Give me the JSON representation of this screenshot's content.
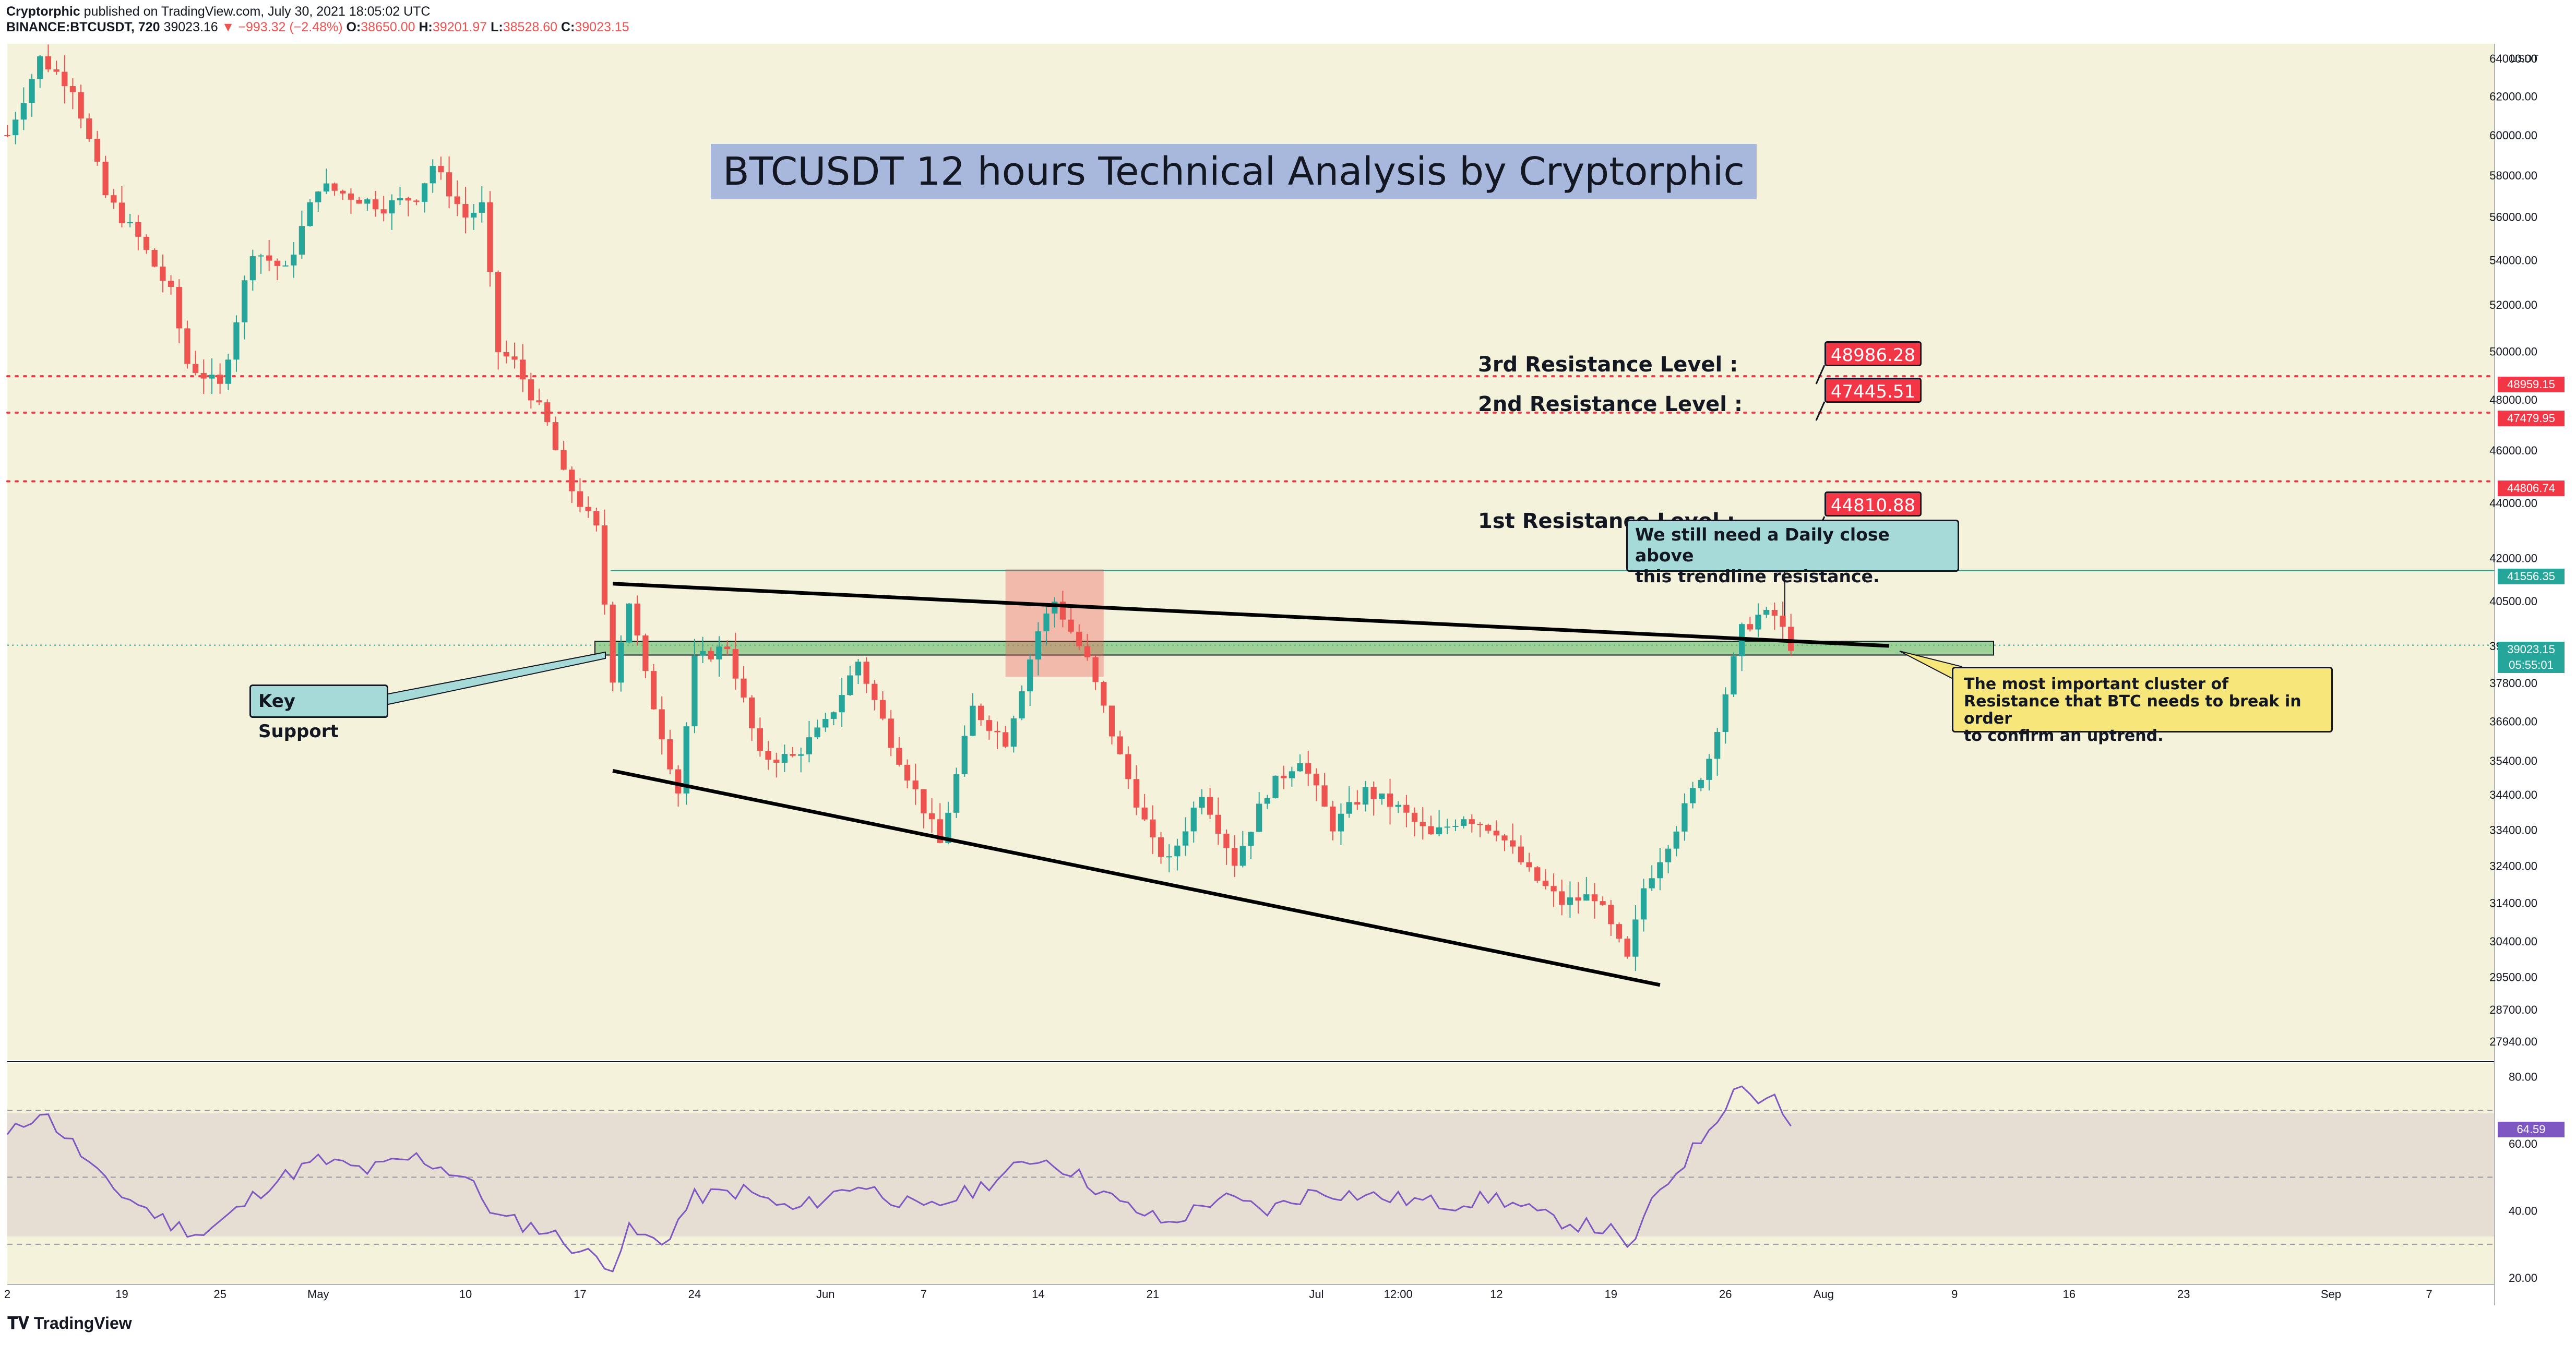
{
  "header": {
    "author": "Cryptorphic",
    "published": "published on TradingView.com, July 30, 2021 18:05:02 UTC",
    "symbol": "BINANCE:BTCUSDT, 720",
    "last": "39023.16",
    "change": "−993.32 (−2.48%)",
    "o_label": "O:",
    "o_value": "38650.00",
    "h_label": "H:",
    "h_value": "39201.97",
    "l_label": "L:",
    "l_value": "38528.60",
    "c_label": "C:",
    "c_value": "39023.15"
  },
  "footer": {
    "brand": "TradingView"
  },
  "colors": {
    "background": "#f5f2dc",
    "up": "#26a69a",
    "down": "#ef5350",
    "resistance": "#f23645",
    "support_zone": "#6fbf73",
    "rsi": "#7e57c2",
    "current_price": "#26a69a"
  },
  "title": "BTCUSDT 12 hours Technical Analysis by Cryptorphic",
  "annotations": {
    "r3_label": "3rd Resistance Level :",
    "r3_value": "48986.28",
    "r2_label": "2nd Resistance Level :",
    "r2_value": "47445.51",
    "r1_label": "1st Resistance Level :",
    "r1_value": "44810.88",
    "key_support": "Key Support",
    "daily_close_line1": "We still need a  Daily close above",
    "daily_close_line2": "this trendline resistance.",
    "cluster_line1": "The most important cluster of",
    "cluster_line2": "Resistance that BTC needs to break in order",
    "cluster_line3": "to confirm an uptrend."
  },
  "price_tags": {
    "currency": "USDT",
    "r3": "48959.15",
    "r2": "47479.95",
    "r1": "44806.74",
    "trend": "41556.35",
    "current": "39023.15",
    "countdown": "05:55:01",
    "rsi_current": "64.59"
  },
  "chart_data": [
    {
      "type": "candlestick",
      "title": "BINANCE:BTCUSDT, 720",
      "y_scale": "log",
      "ylim": [
        27500,
        64800
      ],
      "y_ticks": [
        27940,
        28700,
        29500,
        30400,
        31400,
        32400,
        33400,
        34400,
        35400,
        36600,
        37800,
        39000,
        40500,
        42000,
        44000,
        46000,
        48000,
        50000,
        52000,
        54000,
        56000,
        58000,
        60000,
        62000,
        64000
      ],
      "x_ticks": [
        "2",
        "19",
        "25",
        "May",
        "10",
        "17",
        "24",
        "Jun",
        "7",
        "14",
        "21",
        "Jul",
        "12:00",
        "12",
        "19",
        "26",
        "Aug",
        "9",
        "16",
        "23",
        "Sep",
        "7"
      ],
      "x_range": [
        "2021-04-12",
        "2021-09-11"
      ],
      "x_tick_dates": [
        "2021-04-12",
        "2021-04-19",
        "2021-04-25",
        "2021-05-01",
        "2021-05-10",
        "2021-05-17",
        "2021-05-24",
        "2021-06-01",
        "2021-06-07",
        "2021-06-14",
        "2021-06-21",
        "2021-07-01",
        "2021-07-06",
        "2021-07-12",
        "2021-07-19",
        "2021-07-26",
        "2021-08-01",
        "2021-08-09",
        "2021-08-16",
        "2021-08-23",
        "2021-09-01",
        "2021-09-07"
      ],
      "path": [
        [
          "2021-04-12",
          60000
        ],
        [
          "2021-04-14",
          64000
        ],
        [
          "2021-04-16",
          62500
        ],
        [
          "2021-04-18",
          57000
        ],
        [
          "2021-04-20",
          55000
        ],
        [
          "2021-04-22",
          52500
        ],
        [
          "2021-04-23",
          49500
        ],
        [
          "2021-04-25",
          48500
        ],
        [
          "2021-04-27",
          54500
        ],
        [
          "2021-04-29",
          53500
        ],
        [
          "2021-05-01",
          57500
        ],
        [
          "2021-05-03",
          57000
        ],
        [
          "2021-05-05",
          56500
        ],
        [
          "2021-05-07",
          57000
        ],
        [
          "2021-05-08",
          58500
        ],
        [
          "2021-05-10",
          56000
        ],
        [
          "2021-05-11",
          56500
        ],
        [
          "2021-05-12",
          50000
        ],
        [
          "2021-05-13",
          49500
        ],
        [
          "2021-05-15",
          47000
        ],
        [
          "2021-05-16",
          45000
        ],
        [
          "2021-05-18",
          43000
        ],
        [
          "2021-05-19",
          38000
        ],
        [
          "2021-05-20",
          40500
        ],
        [
          "2021-05-21",
          38000
        ],
        [
          "2021-05-23",
          34500
        ],
        [
          "2021-05-24",
          38500
        ],
        [
          "2021-05-26",
          39000
        ],
        [
          "2021-05-28",
          35500
        ],
        [
          "2021-05-30",
          35500
        ],
        [
          "2021-06-01",
          36500
        ],
        [
          "2021-06-03",
          38500
        ],
        [
          "2021-06-05",
          36000
        ],
        [
          "2021-06-07",
          34000
        ],
        [
          "2021-06-08",
          33000
        ],
        [
          "2021-06-10",
          37000
        ],
        [
          "2021-06-12",
          36000
        ],
        [
          "2021-06-14",
          39500
        ],
        [
          "2021-06-15",
          40500
        ],
        [
          "2021-06-17",
          38500
        ],
        [
          "2021-06-19",
          35500
        ],
        [
          "2021-06-21",
          33000
        ],
        [
          "2021-06-22",
          32500
        ],
        [
          "2021-06-24",
          34500
        ],
        [
          "2021-06-26",
          32500
        ],
        [
          "2021-06-28",
          34500
        ],
        [
          "2021-06-30",
          35500
        ],
        [
          "2021-07-02",
          33500
        ],
        [
          "2021-07-04",
          34500
        ],
        [
          "2021-07-06",
          34000
        ],
        [
          "2021-07-08",
          33200
        ],
        [
          "2021-07-10",
          33800
        ],
        [
          "2021-07-12",
          33400
        ],
        [
          "2021-07-14",
          32200
        ],
        [
          "2021-07-16",
          31400
        ],
        [
          "2021-07-18",
          31600
        ],
        [
          "2021-07-20",
          29900
        ],
        [
          "2021-07-21",
          31800
        ],
        [
          "2021-07-23",
          33500
        ],
        [
          "2021-07-25",
          35500
        ],
        [
          "2021-07-26",
          37500
        ],
        [
          "2021-07-27",
          39500
        ],
        [
          "2021-07-28",
          40000
        ],
        [
          "2021-07-29",
          40000
        ],
        [
          "2021-07-30",
          39023
        ]
      ],
      "current_price": 39023.15,
      "horizontal_levels": [
        48959.15,
        47479.95,
        44806.74,
        41556.35
      ],
      "support_zone": [
        38700,
        39150
      ]
    },
    {
      "type": "line",
      "title": "RSI",
      "ylim": [
        18,
        84
      ],
      "y_ticks": [
        20,
        40,
        60,
        80
      ],
      "band": [
        30,
        70
      ],
      "midline": 50,
      "path": [
        [
          "2021-04-12",
          62
        ],
        [
          "2021-04-14",
          70
        ],
        [
          "2021-04-16",
          60
        ],
        [
          "2021-04-18",
          48
        ],
        [
          "2021-04-20",
          42
        ],
        [
          "2021-04-22",
          36
        ],
        [
          "2021-04-24",
          33
        ],
        [
          "2021-04-26",
          40
        ],
        [
          "2021-04-28",
          48
        ],
        [
          "2021-05-01",
          55
        ],
        [
          "2021-05-04",
          52
        ],
        [
          "2021-05-07",
          56
        ],
        [
          "2021-05-10",
          50
        ],
        [
          "2021-05-12",
          38
        ],
        [
          "2021-05-15",
          34
        ],
        [
          "2021-05-17",
          28
        ],
        [
          "2021-05-19",
          24
        ],
        [
          "2021-05-20",
          34
        ],
        [
          "2021-05-22",
          30
        ],
        [
          "2021-05-24",
          44
        ],
        [
          "2021-05-27",
          46
        ],
        [
          "2021-05-30",
          40
        ],
        [
          "2021-06-03",
          48
        ],
        [
          "2021-06-07",
          40
        ],
        [
          "2021-06-10",
          46
        ],
        [
          "2021-06-14",
          56
        ],
        [
          "2021-06-16",
          52
        ],
        [
          "2021-06-19",
          42
        ],
        [
          "2021-06-22",
          36
        ],
        [
          "2021-06-25",
          44
        ],
        [
          "2021-06-28",
          40
        ],
        [
          "2021-07-01",
          46
        ],
        [
          "2021-07-05",
          44
        ],
        [
          "2021-07-09",
          42
        ],
        [
          "2021-07-12",
          44
        ],
        [
          "2021-07-15",
          38
        ],
        [
          "2021-07-19",
          34
        ],
        [
          "2021-07-20",
          28
        ],
        [
          "2021-07-22",
          46
        ],
        [
          "2021-07-24",
          58
        ],
        [
          "2021-07-26",
          72
        ],
        [
          "2021-07-27",
          79
        ],
        [
          "2021-07-28",
          72
        ],
        [
          "2021-07-29",
          75
        ],
        [
          "2021-07-30",
          64.59
        ]
      ]
    }
  ]
}
